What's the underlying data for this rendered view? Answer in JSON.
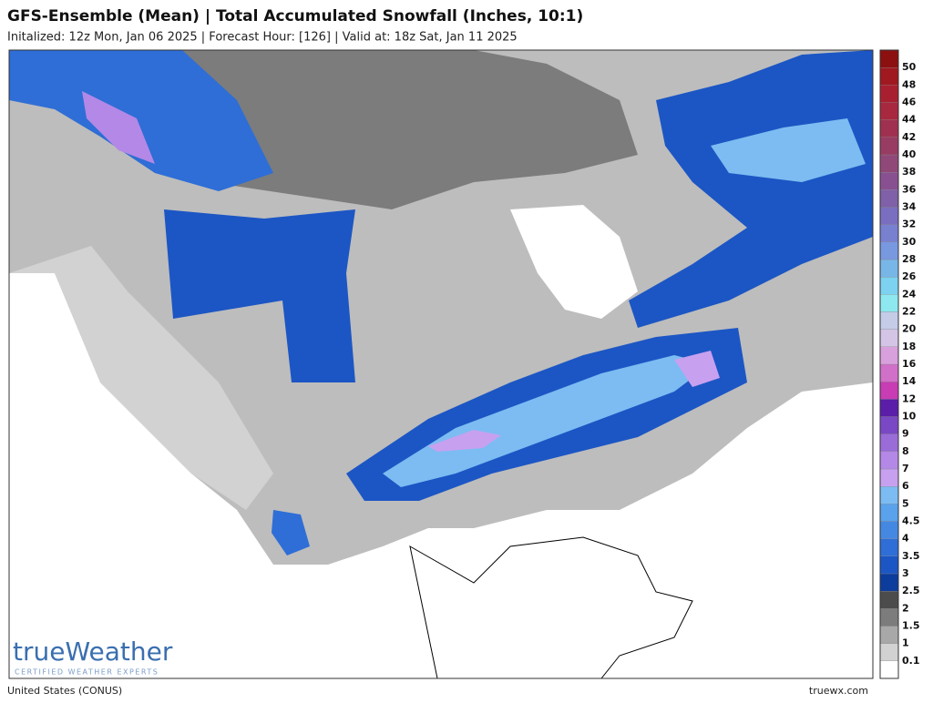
{
  "header": {
    "title": "GFS-Ensemble (Mean) | Total Accumulated Snowfall (Inches, 10:1)",
    "subtitle": "Initalized: 12z Mon, Jan 06 2025  |  Forecast Hour: [126]  |  Valid at: 18z Sat, Jan 11 2025"
  },
  "legend": {
    "levels": [
      0.1,
      1,
      1.5,
      2,
      2.5,
      3,
      3.5,
      4,
      4.5,
      5,
      6,
      7,
      8,
      9,
      10,
      12,
      14,
      16,
      18,
      20,
      22,
      24,
      26,
      28,
      30,
      32,
      34,
      36,
      38,
      40,
      42,
      44,
      46,
      48,
      50
    ],
    "colors": [
      "#ffffff",
      "#d2d2d2",
      "#a8a8a8",
      "#7c7c7c",
      "#4c4c4c",
      "#0c3c9c",
      "#1c56c4",
      "#2e6ed6",
      "#4488e2",
      "#5aa2ec",
      "#7cbcf2",
      "#c8a0f0",
      "#b488e6",
      "#9a6cd8",
      "#7a48c4",
      "#5a1ea8",
      "#c83cb4",
      "#d070c8",
      "#d8a0dc",
      "#d4c4e6",
      "#c4cce8",
      "#8ee8f0",
      "#7cd2f0",
      "#78b6e8",
      "#7898e0",
      "#7880d0",
      "#7a6ec0",
      "#8060a8",
      "#885090",
      "#904878",
      "#983c64",
      "#a03050",
      "#a82840",
      "#a82030",
      "#a01820",
      "#8c1010"
    ]
  },
  "logo": {
    "name": "trueWeather",
    "tagline": "CERTIFIED WEATHER EXPERTS"
  },
  "footer": {
    "region": "United States (CONUS)",
    "site": "truewx.com"
  }
}
